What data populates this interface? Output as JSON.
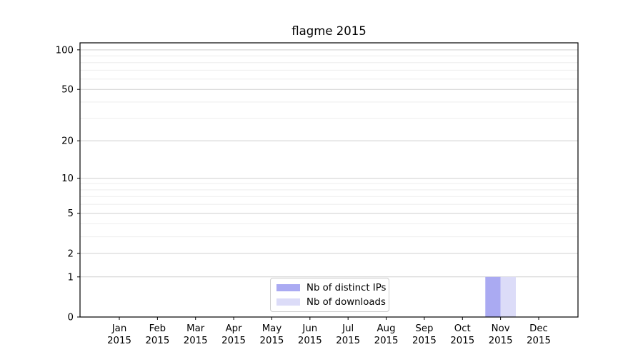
{
  "chart_data": {
    "type": "bar",
    "title": "flagme 2015",
    "categories": [
      "Jan",
      "Feb",
      "Mar",
      "Apr",
      "May",
      "Jun",
      "Jul",
      "Aug",
      "Sep",
      "Oct",
      "Nov",
      "Dec"
    ],
    "category_year": "2015",
    "series": [
      {
        "name": "Nb of distinct IPs",
        "color": "#aaaaf2",
        "values": [
          0,
          0,
          0,
          0,
          0,
          0,
          0,
          0,
          0,
          0,
          1,
          0
        ]
      },
      {
        "name": "Nb of downloads",
        "color": "#dcdcf8",
        "values": [
          0,
          0,
          0,
          0,
          0,
          0,
          0,
          0,
          0,
          0,
          1,
          0
        ]
      }
    ],
    "xlabel": "",
    "ylabel": "",
    "yscale": "log1p",
    "ylim": [
      0,
      113
    ],
    "y_major_ticks": [
      0,
      1,
      2,
      5,
      10,
      20,
      50,
      100
    ],
    "y_minor_ticks": [
      3,
      4,
      6,
      7,
      8,
      9,
      30,
      40,
      60,
      70,
      80,
      90
    ],
    "grid": "both",
    "legend_position": "lower-center-inside"
  },
  "colors": {
    "spine": "#000000",
    "text": "#000000",
    "grid_major": "#cfcfcf",
    "grid_minor": "#eeeeee",
    "legend_border": "#cccccc"
  }
}
